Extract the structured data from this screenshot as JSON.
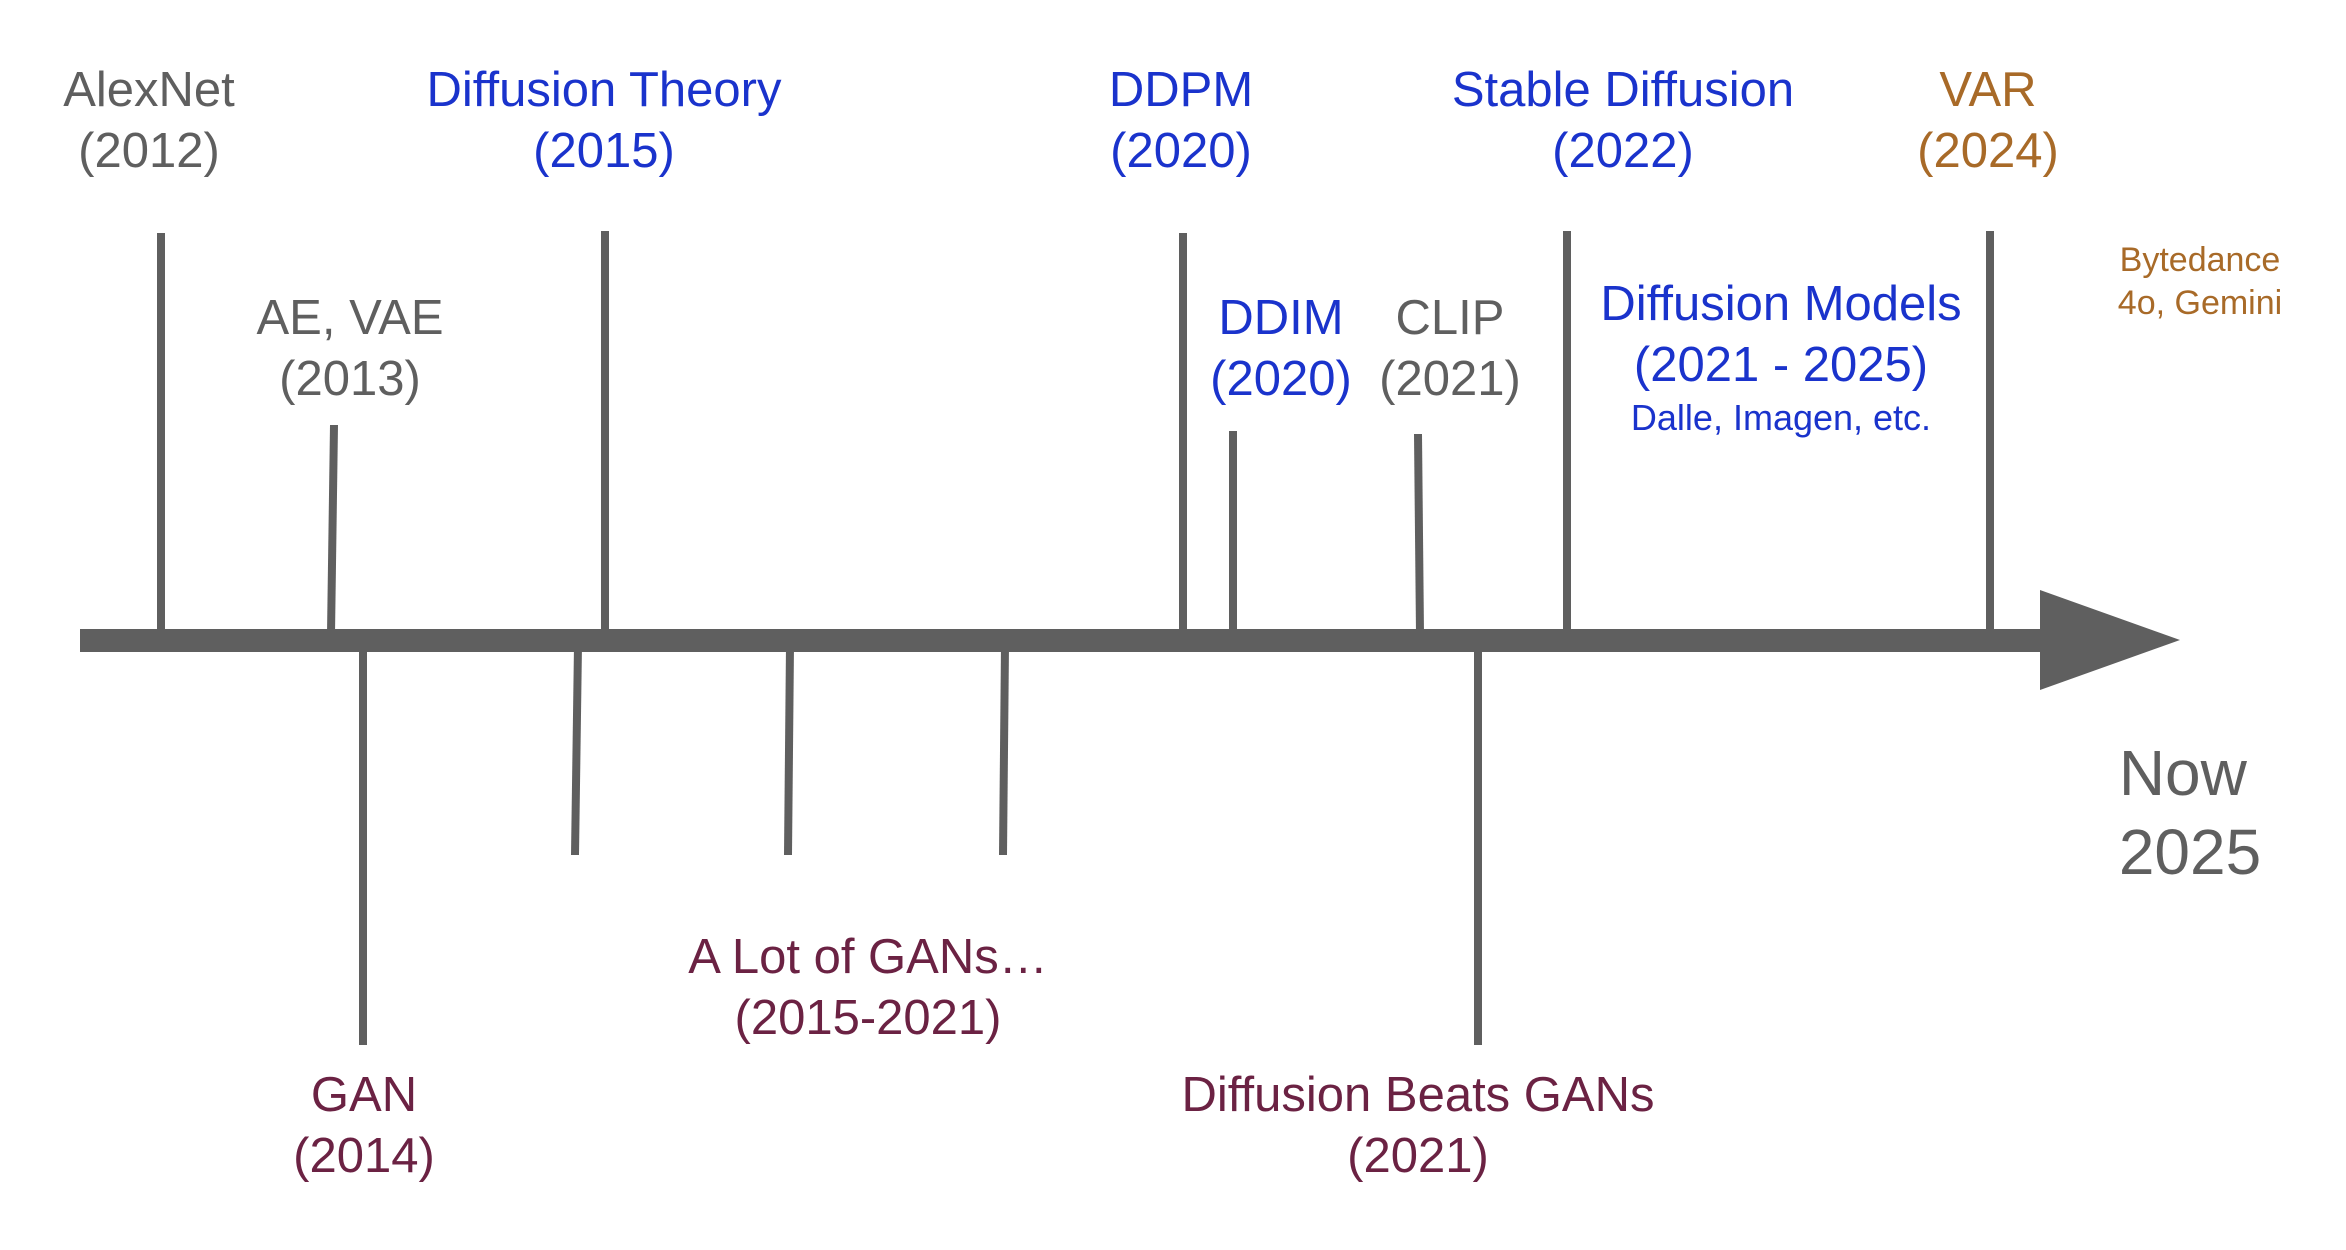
{
  "colors": {
    "gray": "#5f5f5f",
    "blue": "#1a33cc",
    "maroon": "#6b2243",
    "brown": "#a86a28",
    "axis": "#5f5f5f"
  },
  "milestones": {
    "alexnet": {
      "name": "AlexNet",
      "year": "(2012)"
    },
    "ae_vae": {
      "name": "AE, VAE",
      "year": "(2013)"
    },
    "gan": {
      "name": "GAN",
      "year": "(2014)"
    },
    "diffusion_theory": {
      "name": "Diffusion Theory",
      "year": "(2015)"
    },
    "many_gans": {
      "name": "A Lot of GANs…",
      "year": "(2015-2021)"
    },
    "ddpm": {
      "name": "DDPM",
      "year": "(2020)"
    },
    "ddim": {
      "name": "DDIM",
      "year": "(2020)"
    },
    "clip": {
      "name": "CLIP",
      "year": "(2021)"
    },
    "diffusion_beats_gans": {
      "name": "Diffusion Beats GANs",
      "year": "(2021)"
    },
    "stable_diffusion": {
      "name": "Stable Diffusion",
      "year": "(2022)"
    },
    "diffusion_models": {
      "name": "Diffusion Models",
      "year": "(2021 - 2025)",
      "examples": "Dalle, Imagen, etc."
    },
    "var": {
      "name": "VAR",
      "year": "(2024)"
    },
    "var_companies": {
      "line1": "Bytedance",
      "line2": "4o, Gemini"
    }
  },
  "now": {
    "label": "Now",
    "year": "2025"
  }
}
